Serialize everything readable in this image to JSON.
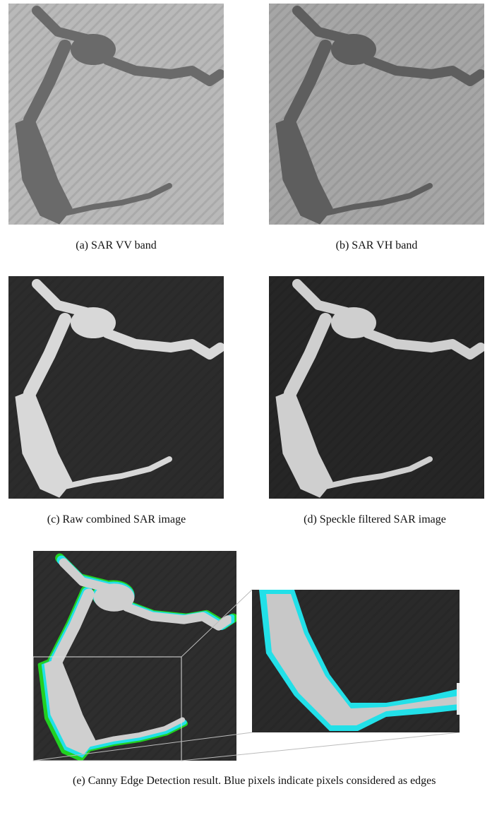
{
  "figure": {
    "panels": [
      {
        "caption": "(a) SAR VV band"
      },
      {
        "caption": "(b) SAR VH band"
      },
      {
        "caption": "(c) Raw combined SAR image"
      },
      {
        "caption": "(d) Speckle filtered SAR image"
      },
      {
        "caption": "(e) Canny Edge Detection result. Blue pixels indicate pixels considered as edges"
      }
    ]
  }
}
